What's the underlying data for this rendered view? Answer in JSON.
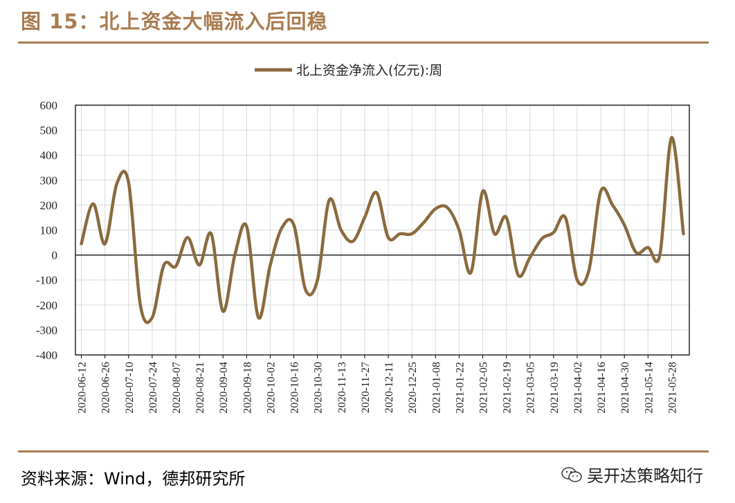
{
  "figure": {
    "title": "图 15：北上资金大幅流入后回稳",
    "source": "资料来源：Wind，德邦研究所",
    "watermark": "吴开达策略知行"
  },
  "colors": {
    "accent": "#a97b50",
    "series": "#8b6a3e",
    "grid": "#d9d9d9",
    "axis": "#000000"
  },
  "chart_data": {
    "type": "line",
    "title": "",
    "legend": {
      "position": "top-center",
      "entries": [
        "北上资金净流入(亿元):周"
      ]
    },
    "xlabel": "",
    "ylabel": "",
    "ylim": [
      -400,
      600
    ],
    "yticks": [
      600,
      500,
      400,
      300,
      200,
      100,
      0,
      -100,
      -200,
      -300,
      -400
    ],
    "ytick_labels": [
      "600",
      "500",
      "400",
      "300",
      "200",
      "100",
      "0",
      "-100",
      "-200",
      "-300",
      "-400"
    ],
    "xtick_labels": [
      "2020-06-12",
      "2020-06-26",
      "2020-07-10",
      "2020-07-24",
      "2020-08-07",
      "2020-08-21",
      "2020-09-04",
      "2020-09-18",
      "2020-10-02",
      "2020-10-16",
      "2020-10-30",
      "2020-11-13",
      "2020-11-27",
      "2020-12-11",
      "2020-12-25",
      "2021-01-08",
      "2021-01-22",
      "2021-02-05",
      "2021-02-19",
      "2021-03-05",
      "2021-03-19",
      "2021-04-02",
      "2021-04-16",
      "2021-04-30",
      "2021-05-14",
      "2021-05-28"
    ],
    "grid": true,
    "series": [
      {
        "name": "北上资金净流入(亿元):周",
        "x": [
          "2020-06-12",
          "2020-06-19",
          "2020-06-26",
          "2020-07-03",
          "2020-07-10",
          "2020-07-17",
          "2020-07-24",
          "2020-07-31",
          "2020-08-07",
          "2020-08-14",
          "2020-08-21",
          "2020-08-28",
          "2020-09-04",
          "2020-09-11",
          "2020-09-18",
          "2020-09-25",
          "2020-10-02",
          "2020-10-09",
          "2020-10-16",
          "2020-10-23",
          "2020-10-30",
          "2020-11-06",
          "2020-11-13",
          "2020-11-20",
          "2020-11-27",
          "2020-12-04",
          "2020-12-11",
          "2020-12-18",
          "2020-12-25",
          "2021-01-01",
          "2021-01-08",
          "2021-01-15",
          "2021-01-22",
          "2021-01-29",
          "2021-02-05",
          "2021-02-12",
          "2021-02-19",
          "2021-02-26",
          "2021-03-05",
          "2021-03-12",
          "2021-03-19",
          "2021-03-26",
          "2021-04-02",
          "2021-04-09",
          "2021-04-16",
          "2021-04-23",
          "2021-04-30",
          "2021-05-07",
          "2021-05-14",
          "2021-05-21",
          "2021-05-28",
          "2021-06-04"
        ],
        "values": [
          45,
          205,
          45,
          285,
          290,
          -200,
          -250,
          -40,
          -45,
          70,
          -40,
          85,
          -225,
          0,
          115,
          -250,
          -40,
          110,
          120,
          -140,
          -100,
          220,
          100,
          55,
          150,
          250,
          70,
          85,
          85,
          130,
          185,
          190,
          100,
          -70,
          255,
          85,
          150,
          -80,
          -10,
          65,
          90,
          150,
          -100,
          -60,
          255,
          200,
          120,
          10,
          30,
          0,
          470,
          85
        ]
      }
    ]
  }
}
